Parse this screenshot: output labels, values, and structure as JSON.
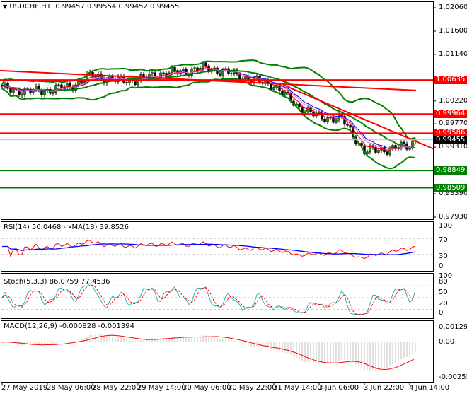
{
  "header": {
    "symbol": "USDCHF,H1",
    "open": "0.99457",
    "high": "0.99554",
    "low": "0.99452",
    "close": "0.99455",
    "menu_icon": "triangle-down-icon"
  },
  "colors": {
    "resistance": "#ff0000",
    "support": "#008000",
    "bollinger": "#008000",
    "current_price": "#000000",
    "rsi": "#ff0000",
    "rsi_ma": "#0000ff",
    "stoch_main": "#20b2aa",
    "stoch_signal": "#ff0000",
    "macd_hist": "#c0c0c0",
    "macd_signal": "#ff0000"
  },
  "price_axis": [
    "1.02060",
    "1.01600",
    "1.01140",
    "1.00220",
    "0.99770",
    "0.99310",
    "0.98390",
    "0.97930"
  ],
  "price_tags": [
    {
      "value": "1.00635",
      "color": "#ff0000"
    },
    {
      "value": "0.99964",
      "color": "#ff0000"
    },
    {
      "value": "0.99586",
      "color": "#ff0000"
    },
    {
      "value": "0.99455",
      "color": "#000000"
    },
    {
      "value": "0.98849",
      "color": "#008000"
    },
    {
      "value": "0.98509",
      "color": "#008000"
    }
  ],
  "time_axis": [
    "27 May 2019",
    "28 May 06:00",
    "28 May 22:00",
    "29 May 14:00",
    "30 May 06:00",
    "30 May 22:00",
    "31 May 14:00",
    "3 Jun 06:00",
    "3 Jun 22:00",
    "4 Jun 14:00"
  ],
  "rsi": {
    "label": "RSI(14) 50.0468  ->MA(18) 39.8526",
    "levels": [
      "100",
      "70",
      "30",
      "0"
    ]
  },
  "stoch": {
    "label": "Stoch(5,3,3) 86.0759 77.4536",
    "levels": [
      "100",
      "80",
      "50",
      "20",
      "0"
    ]
  },
  "macd": {
    "label": "MACD(12,26,9) -0.000828 -0.001394",
    "levels": [
      "0.001299",
      "0.00",
      "-0.002556"
    ]
  },
  "chart_data": {
    "type": "candlestick",
    "symbol": "USDCHF",
    "timeframe": "H1",
    "ylim": [
      0.9793,
      1.0206
    ],
    "price_path": [
      {
        "time": "27 May 14:00",
        "price": 1.0047
      },
      {
        "time": "27 May 22:00",
        "price": 1.0041
      },
      {
        "time": "28 May 06:00",
        "price": 1.0043
      },
      {
        "time": "28 May 14:00",
        "price": 1.0051
      },
      {
        "time": "28 May 22:00",
        "price": 1.0073
      },
      {
        "time": "29 May 06:00",
        "price": 1.0063
      },
      {
        "time": "29 May 14:00",
        "price": 1.0064
      },
      {
        "time": "29 May 22:00",
        "price": 1.0076
      },
      {
        "time": "30 May 06:00",
        "price": 1.008
      },
      {
        "time": "30 May 14:00",
        "price": 1.0088
      },
      {
        "time": "30 May 22:00",
        "price": 1.0078
      },
      {
        "time": "31 May 06:00",
        "price": 1.0064
      },
      {
        "time": "31 May 14:00",
        "price": 1.0054
      },
      {
        "time": "31 May 22:00",
        "price": 1.0013
      },
      {
        "time": "3 Jun 06:00",
        "price": 0.999
      },
      {
        "time": "3 Jun 14:00",
        "price": 0.9987
      },
      {
        "time": "3 Jun 22:00",
        "price": 0.9923
      },
      {
        "time": "4 Jun 06:00",
        "price": 0.9927
      },
      {
        "time": "4 Jun 14:00",
        "price": 0.9934
      },
      {
        "time": "4 Jun 16:00",
        "price": 0.99455
      }
    ],
    "horizontal_levels": {
      "resistance": [
        1.00635,
        0.99964,
        0.99586
      ],
      "support": [
        0.98849,
        0.98509
      ]
    },
    "indicators": [
      "Bollinger Bands",
      "Moving Averages",
      "RSI(14)",
      "Stoch(5,3,3)",
      "MACD(12,26,9)"
    ]
  }
}
